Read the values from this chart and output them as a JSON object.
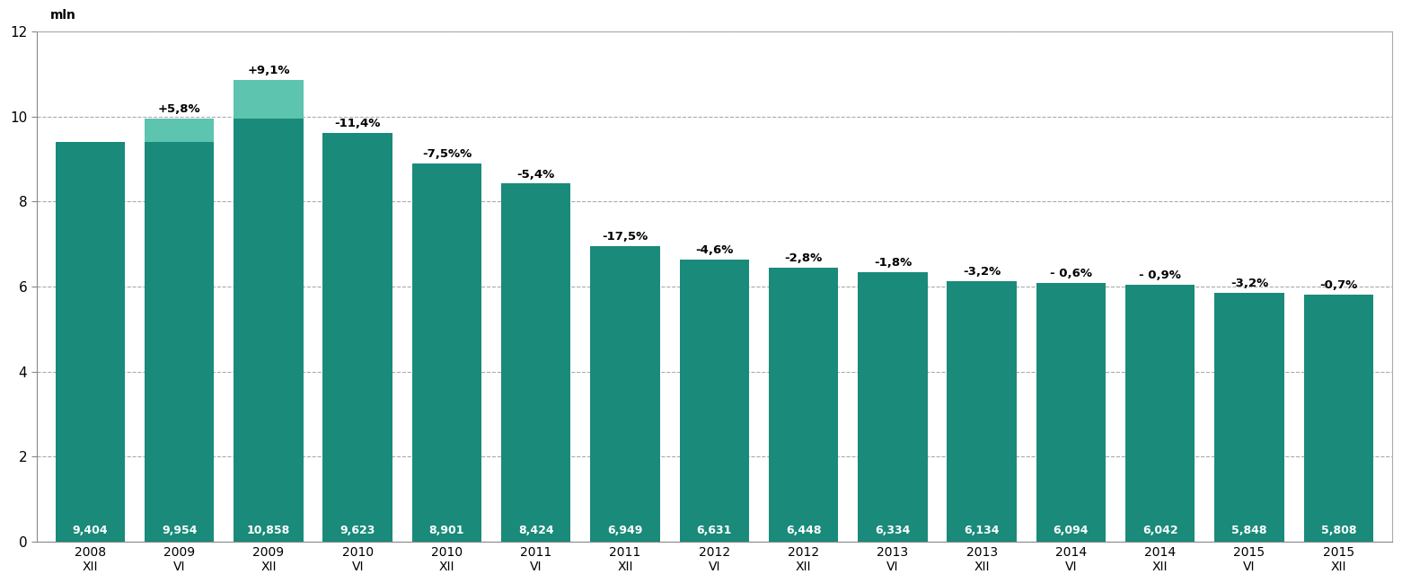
{
  "categories": [
    "2008\nXII",
    "2009\nVI",
    "2009\nXII",
    "2010\nVI",
    "2010\nXII",
    "2011\nVI",
    "2011\nXII",
    "2012\nVI",
    "2012\nXII",
    "2013\nVI",
    "2013\nXII",
    "2014\nVI",
    "2014\nXII",
    "2015\nVI",
    "2015\nXII"
  ],
  "values": [
    9.404,
    9.954,
    10.858,
    9.623,
    8.901,
    8.424,
    6.949,
    6.631,
    6.448,
    6.334,
    6.134,
    6.094,
    6.042,
    5.848,
    5.808
  ],
  "value_labels": [
    "9,404",
    "9,954",
    "10,858",
    "9,623",
    "8,901",
    "8,424",
    "6,949",
    "6,631",
    "6,448",
    "6,334",
    "6,134",
    "6,094",
    "6,042",
    "5,848",
    "5,808"
  ],
  "pct_labels": [
    null,
    "+5,8%",
    "+9,1%",
    "-11,4%",
    "-7,5%%",
    "-5,4%",
    "-17,5%",
    "-4,6%",
    "-2,8%",
    "-1,8%",
    "-3,2%",
    "- 0,6%",
    "- 0,9%",
    "-3,2%",
    "-0,7%"
  ],
  "bar_color": "#1a8a7a",
  "highlight_color": "#5dc4b0",
  "highlight_indices": [
    1,
    2
  ],
  "highlight_base_values": [
    9.404,
    9.954
  ],
  "ylim": [
    0,
    12
  ],
  "yticks": [
    0,
    2,
    4,
    6,
    8,
    10,
    12
  ],
  "ylabel": "mln",
  "background_color": "#ffffff",
  "grid_color": "#aaaaaa",
  "value_label_color": "#ffffff",
  "pct_label_color": "#000000",
  "bar_width": 0.78,
  "border_color": "#aaaaaa"
}
